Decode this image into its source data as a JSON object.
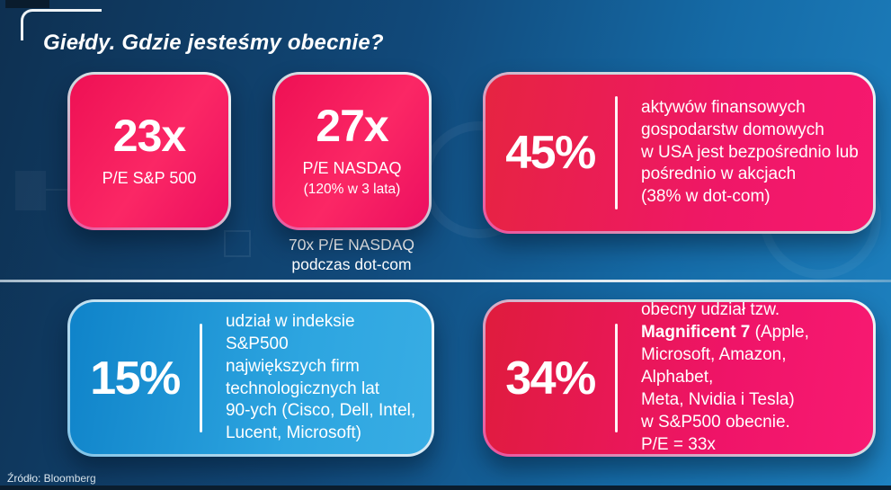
{
  "slide": {
    "title": "Giełdy. Gdzie jesteśmy obecnie?",
    "source": "Źródło: Bloomberg"
  },
  "cards": {
    "pe_sp500": {
      "value": "23x",
      "label": "P/E S&P 500"
    },
    "pe_nasdaq": {
      "value": "27x",
      "label": "P/E NASDAQ",
      "sublabel": "(120% w 3 lata)",
      "footnote": "70x P/E NASDAQ\npodczas dot-com"
    },
    "household_equity": {
      "value": "45%",
      "text": "aktywów finansowych\ngospodarstw domowych\nw USA jest bezpośrednio lub\npośrednio w akcjach\n(38% w dot-com)"
    },
    "tech_90s": {
      "value": "15%",
      "text": "udział w indeksie S&P500\nnajwiększych firm\ntechnologicznych lat\n90-ych (Cisco, Dell, Intel,\nLucent, Microsoft)"
    },
    "magnificent_7": {
      "value": "34%",
      "text_before": "obecny udział tzw.\n",
      "text_bold": "Magnificent 7",
      "text_after": " (Apple,\nMicrosoft, Amazon, Alphabet,\nMeta, Nvidia i Tesla)\nw S&P500 obecnie.\nP/E = 33x"
    }
  },
  "colors": {
    "background_dark": "#0e3051",
    "background_light": "#1e82c1",
    "card_pink_start": "#ee1054",
    "card_pink_end": "#f8196f",
    "card_red_start": "#e2203f",
    "card_blue_start": "#0f83c9",
    "card_blue_end": "#38ade4",
    "text": "#ffffff",
    "bottom_bar": "#0a1d2e"
  }
}
